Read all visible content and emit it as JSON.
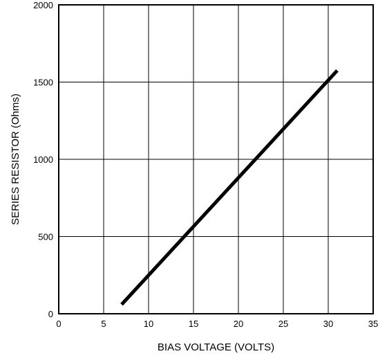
{
  "chart_data": {
    "type": "line",
    "title": "",
    "xlabel": "BIAS VOLTAGE (VOLTS)",
    "ylabel": "SERIES RESISTOR (Ohms)",
    "xlim": [
      0,
      35
    ],
    "ylim": [
      0,
      2000
    ],
    "x_ticks": [
      {
        "value": 0,
        "label": "0"
      },
      {
        "value": 5,
        "label": "5"
      },
      {
        "value": 10,
        "label": "10"
      },
      {
        "value": 15,
        "label": "15"
      },
      {
        "value": 20,
        "label": "20"
      },
      {
        "value": 25,
        "label": "25"
      },
      {
        "value": 30,
        "label": "30"
      },
      {
        "value": 35,
        "label": "35"
      }
    ],
    "y_ticks": [
      {
        "value": 0,
        "label": "0"
      },
      {
        "value": 500,
        "label": "500"
      },
      {
        "value": 1000,
        "label": "1000"
      },
      {
        "value": 1500,
        "label": "1500"
      },
      {
        "value": 2000,
        "label": "2000"
      }
    ],
    "grid": true,
    "series": [
      {
        "x": [
          7,
          31
        ],
        "y": [
          60,
          1575
        ],
        "color": "#000000"
      }
    ]
  }
}
